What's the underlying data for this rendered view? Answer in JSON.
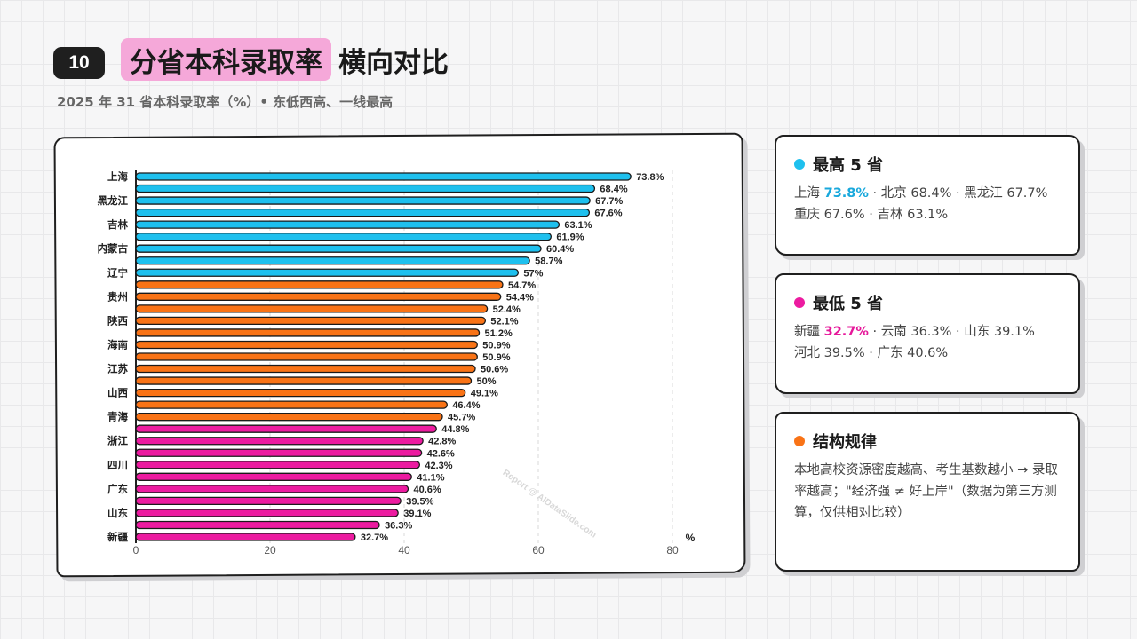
{
  "slide": {
    "number": "10",
    "title_highlight": "分省本科录取率",
    "title_rest": "横向对比",
    "subtitle": "2025 年 31 省本科录取率（%）• 东低西高、一线最高"
  },
  "watermark": "Report @ AIDataSlide.com",
  "colors": {
    "top": "#1ec0ee",
    "middle": "#f97316",
    "bottom": "#ec1ba0",
    "title_highlight": "#f5a8d9"
  },
  "chart_data": {
    "type": "bar",
    "orientation": "horizontal",
    "xlabel": "%",
    "xlim": [
      0,
      80
    ],
    "xticks": [
      0,
      20,
      40,
      60,
      80
    ],
    "grid": true,
    "shown_category_labels": [
      "上海",
      "黑龙江",
      "吉林",
      "内蒙古",
      "辽宁",
      "贵州",
      "陕西",
      "海南",
      "江苏",
      "山西",
      "青海",
      "浙江",
      "四川",
      "广东",
      "山东",
      "新疆"
    ],
    "values": [
      73.8,
      68.4,
      67.7,
      67.6,
      63.1,
      61.9,
      60.4,
      58.7,
      57,
      54.7,
      54.4,
      52.4,
      52.1,
      51.2,
      50.9,
      50.9,
      50.6,
      50,
      49.1,
      46.4,
      45.7,
      44.8,
      42.8,
      42.6,
      42.3,
      41.1,
      40.6,
      39.5,
      39.1,
      36.3,
      32.7
    ],
    "value_labels": [
      "73.8%",
      "68.4%",
      "67.7%",
      "67.6%",
      "63.1%",
      "61.9%",
      "60.4%",
      "58.7%",
      "57%",
      "54.7%",
      "54.4%",
      "52.4%",
      "52.1%",
      "51.2%",
      "50.9%",
      "50.9%",
      "50.6%",
      "50%",
      "49.1%",
      "46.4%",
      "45.7%",
      "44.8%",
      "42.8%",
      "42.6%",
      "42.3%",
      "41.1%",
      "40.6%",
      "39.5%",
      "39.1%",
      "36.3%",
      "32.7%"
    ],
    "groups": [
      "top",
      "top",
      "top",
      "top",
      "top",
      "top",
      "top",
      "top",
      "top",
      "middle",
      "middle",
      "middle",
      "middle",
      "middle",
      "middle",
      "middle",
      "middle",
      "middle",
      "middle",
      "middle",
      "middle",
      "bottom",
      "bottom",
      "bottom",
      "bottom",
      "bottom",
      "bottom",
      "bottom",
      "bottom",
      "bottom",
      "bottom"
    ]
  },
  "cards": {
    "top5": {
      "title": "最高 5 省",
      "line1_prefix": "上海 ",
      "line1_value": "73.8%",
      "line1_rest": " · 北京 68.4% · 黑龙江 67.7%",
      "line2": "重庆 67.6% · 吉林 63.1%"
    },
    "bottom5": {
      "title": "最低 5 省",
      "line1_prefix": "新疆 ",
      "line1_value": "32.7%",
      "line1_rest": " · 云南 36.3% · 山东 39.1%",
      "line2": "河北 39.5% · 广东 40.6%"
    },
    "pattern": {
      "title": "结构规律",
      "body": "本地高校资源密度越高、考生基数越小 → 录取率越高；\"经济强 ≠ 好上岸\"（数据为第三方测算，仅供相对比较）"
    }
  }
}
